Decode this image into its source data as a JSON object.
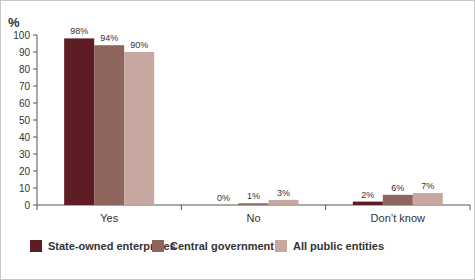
{
  "chart_data": {
    "type": "bar",
    "y_label": "%",
    "categories": [
      "Yes",
      "No",
      "Don’t know"
    ],
    "series": [
      {
        "name": "State-owned enterprises",
        "color": "#5e1c24",
        "values": [
          98,
          0,
          2
        ],
        "value_labels": [
          "98%",
          "0%",
          "2%"
        ]
      },
      {
        "name": "Central government",
        "color": "#8e655c",
        "values": [
          94,
          1,
          6
        ],
        "value_labels": [
          "94%",
          "1%",
          "6%"
        ]
      },
      {
        "name": "All public entities",
        "color": "#c6a8a0",
        "values": [
          90,
          3,
          7
        ],
        "value_labels": [
          "90%",
          "3%",
          "7%"
        ]
      }
    ],
    "ylim": [
      0,
      100
    ],
    "yticks": [
      0,
      10,
      20,
      30,
      40,
      50,
      60,
      70,
      80,
      90,
      100
    ],
    "grid": false,
    "legend": "bottom",
    "data_labels": true
  }
}
